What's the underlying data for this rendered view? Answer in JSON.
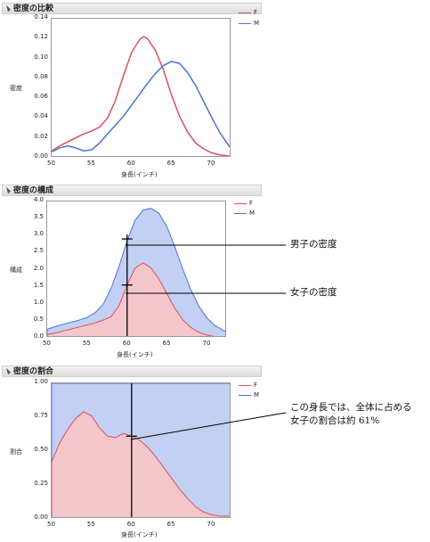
{
  "colors": {
    "F": "#d9505e",
    "M": "#4a72d8",
    "F_fill": "#f3c6cc",
    "M_fill": "#c3d0f3"
  },
  "sections": [
    {
      "title": "密度の比較"
    },
    {
      "title": "密度の構成"
    },
    {
      "title": "密度の割合"
    }
  ],
  "legend": {
    "F": "F",
    "M": "M"
  },
  "annotations": {
    "male_density": "男子の密度",
    "female_density": "女子の密度",
    "ratio_line1": "この身長では、全体に占める",
    "ratio_line2": "女子の割合は約 61%"
  },
  "chart_data": [
    {
      "type": "line",
      "title": "密度の比較",
      "xlabel": "身長(インチ)",
      "ylabel": "密度",
      "xlim": [
        50,
        72.5
      ],
      "ylim": [
        0,
        0.14
      ],
      "xticks": [
        "50",
        "55",
        "60",
        "65",
        "70"
      ],
      "yticks": [
        "0.00",
        "0.02",
        "0.04",
        "0.06",
        "0.08",
        "0.10",
        "0.12",
        "0.14"
      ],
      "legend_position": "top-right",
      "series": [
        {
          "name": "F",
          "x": [
            50,
            51,
            52,
            53,
            54,
            55,
            56,
            57,
            58,
            59,
            60,
            61,
            61.5,
            62,
            63,
            64,
            65,
            66,
            67,
            68,
            69,
            70,
            71,
            72,
            72.5
          ],
          "y": [
            0.007,
            0.012,
            0.016,
            0.02,
            0.024,
            0.027,
            0.031,
            0.04,
            0.058,
            0.083,
            0.106,
            0.119,
            0.122,
            0.12,
            0.108,
            0.088,
            0.063,
            0.042,
            0.026,
            0.015,
            0.009,
            0.005,
            0.003,
            0.002,
            0.001
          ]
        },
        {
          "name": "M",
          "x": [
            50,
            51,
            52,
            53,
            54,
            55,
            56,
            57,
            58,
            59,
            60,
            61,
            62,
            63,
            64,
            65,
            66,
            67,
            68,
            69,
            70,
            71,
            72,
            72.5
          ],
          "y": [
            0.006,
            0.01,
            0.012,
            0.01,
            0.007,
            0.008,
            0.015,
            0.024,
            0.033,
            0.042,
            0.053,
            0.064,
            0.075,
            0.085,
            0.093,
            0.097,
            0.095,
            0.086,
            0.073,
            0.057,
            0.041,
            0.026,
            0.014,
            0.009
          ]
        }
      ]
    },
    {
      "type": "area",
      "title": "密度の構成",
      "xlabel": "身長(インチ)",
      "ylabel": "構成",
      "xlim": [
        50,
        72.5
      ],
      "ylim": [
        0,
        4.0
      ],
      "xticks": [
        "50",
        "55",
        "60",
        "65",
        "70"
      ],
      "yticks": [
        "0.0",
        "0.5",
        "1.0",
        "1.5",
        "2.0",
        "2.5",
        "3.0",
        "3.5",
        "4.0"
      ],
      "legend_position": "top-right",
      "marker_x": 60,
      "series": [
        {
          "name": "F",
          "x": [
            50,
            51,
            52,
            53,
            54,
            55,
            56,
            57,
            58,
            59,
            60,
            61,
            62,
            63,
            64,
            65,
            66,
            67,
            68,
            69,
            70,
            71,
            72,
            72.5
          ],
          "y": [
            0.1,
            0.14,
            0.2,
            0.26,
            0.32,
            0.38,
            0.44,
            0.52,
            0.62,
            0.95,
            1.55,
            2.05,
            2.2,
            2.05,
            1.72,
            1.28,
            0.86,
            0.52,
            0.3,
            0.16,
            0.08,
            0.04,
            0.02,
            0.01
          ]
        },
        {
          "name": "M",
          "x": [
            50,
            51,
            52,
            53,
            54,
            55,
            56,
            57,
            58,
            59,
            60,
            61,
            62,
            63,
            64,
            65,
            66,
            67,
            68,
            69,
            70,
            71,
            72,
            72.5
          ],
          "y": [
            0.25,
            0.33,
            0.4,
            0.46,
            0.52,
            0.6,
            0.74,
            0.98,
            1.45,
            2.1,
            2.85,
            3.45,
            3.75,
            3.8,
            3.65,
            3.25,
            2.65,
            2.0,
            1.4,
            0.92,
            0.58,
            0.36,
            0.22,
            0.18
          ]
        }
      ]
    },
    {
      "type": "area",
      "title": "密度の割合",
      "xlabel": "身長(インチ)",
      "ylabel": "割合",
      "xlim": [
        50,
        72.5
      ],
      "ylim": [
        0,
        1.0
      ],
      "xticks": [
        "50",
        "55",
        "60",
        "65",
        "70"
      ],
      "yticks": [
        "0.00",
        "0.25",
        "0.50",
        "0.75",
        "1.00"
      ],
      "legend_position": "top-right",
      "marker_x": 60,
      "series": [
        {
          "name": "F",
          "x": [
            50,
            51,
            52,
            53,
            54,
            55,
            56,
            57,
            58,
            59,
            60,
            61,
            62,
            63,
            64,
            65,
            66,
            67,
            68,
            69,
            70,
            71,
            72,
            72.5
          ],
          "y": [
            0.42,
            0.56,
            0.66,
            0.74,
            0.79,
            0.76,
            0.67,
            0.61,
            0.6,
            0.63,
            0.61,
            0.58,
            0.53,
            0.46,
            0.38,
            0.3,
            0.22,
            0.15,
            0.09,
            0.05,
            0.03,
            0.02,
            0.02,
            0.02
          ]
        },
        {
          "name": "M",
          "x": [
            50,
            72.5
          ],
          "y": [
            1.0,
            1.0
          ]
        }
      ]
    }
  ]
}
